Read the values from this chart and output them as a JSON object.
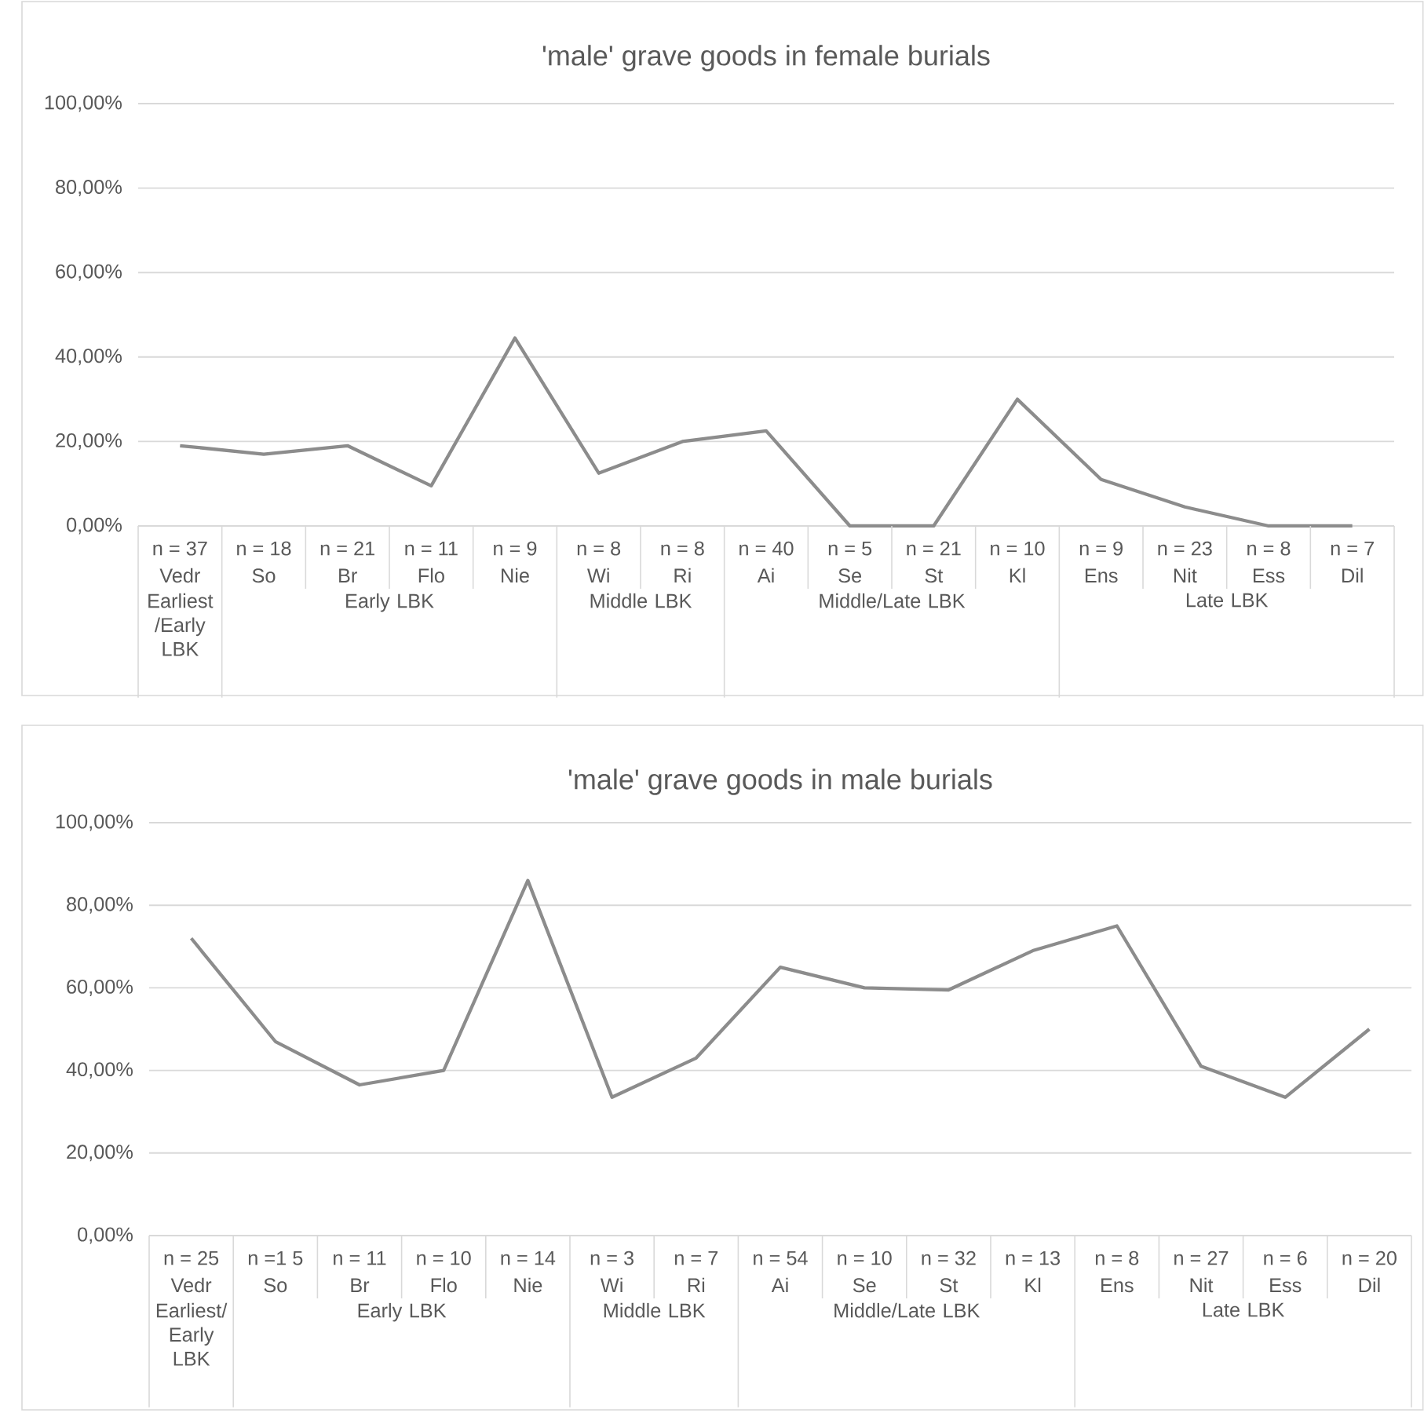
{
  "chart_data": [
    {
      "type": "line",
      "title": "'male' grave goods in female burials",
      "color": "#8c8c8c",
      "grid": "y",
      "ylim": [
        0,
        100
      ],
      "yticks": [
        {
          "value": 0,
          "label": "0,00%"
        },
        {
          "value": 20,
          "label": "20,00%"
        },
        {
          "value": 40,
          "label": "40,00%"
        },
        {
          "value": 60,
          "label": "60,00%"
        },
        {
          "value": 80,
          "label": "80,00%"
        },
        {
          "value": 100,
          "label": "100,00%"
        }
      ],
      "categories": [
        "Vedr",
        "So",
        "Br",
        "Flo",
        "Nie",
        "Wi",
        "Ri",
        "Ai",
        "Se",
        "St",
        "Kl",
        "Ens",
        "Nit",
        "Ess",
        "Dil"
      ],
      "values": [
        19,
        17,
        19,
        9.5,
        44.5,
        12.5,
        20,
        22.5,
        0,
        0,
        30,
        11,
        4.5,
        0,
        0
      ],
      "annotations": [
        "n = 37",
        "n = 18",
        "n = 21",
        "n = 11",
        "n = 9",
        "n = 8",
        "n = 8",
        "n = 40",
        "n = 5",
        "n = 21",
        "n = 10",
        "n = 9",
        "n = 23",
        "n = 8",
        "n = 7",
        "Earliest /Early LBK",
        "Early LBK",
        "Middle LBK",
        "Middle/Late LBK",
        "Late LBK"
      ]
    },
    {
      "type": "line",
      "title": "'male' grave goods in male burials",
      "color": "#8c8c8c",
      "grid": "y",
      "ylim": [
        0,
        100
      ],
      "yticks": [
        {
          "value": 0,
          "label": "0,00%"
        },
        {
          "value": 20,
          "label": "20,00%"
        },
        {
          "value": 40,
          "label": "40,00%"
        },
        {
          "value": 60,
          "label": "60,00%"
        },
        {
          "value": 80,
          "label": "80,00%"
        },
        {
          "value": 100,
          "label": "100,00%"
        }
      ],
      "categories": [
        "Vedr",
        "So",
        "Br",
        "Flo",
        "Nie",
        "Wi",
        "Ri",
        "Ai",
        "Se",
        "St",
        "Kl",
        "Ens",
        "Nit",
        "Ess",
        "Dil"
      ],
      "values": [
        72,
        47,
        36.5,
        40,
        86,
        33.5,
        43,
        65,
        60,
        59.5,
        69,
        75,
        41,
        33.5,
        50
      ],
      "annotations": [
        "n = 25",
        "n =1 5",
        "n = 11",
        "n = 10",
        "n = 14",
        "n = 3",
        "n = 7",
        "n = 54",
        "n = 10",
        "n = 32",
        "n = 13",
        "n = 8",
        "n = 27",
        "n = 6",
        "n = 20",
        "Earliest/ Early LBK",
        "Early LBK",
        "Middle LBK",
        "Middle/Late LBK",
        "Late LBK"
      ]
    }
  ]
}
